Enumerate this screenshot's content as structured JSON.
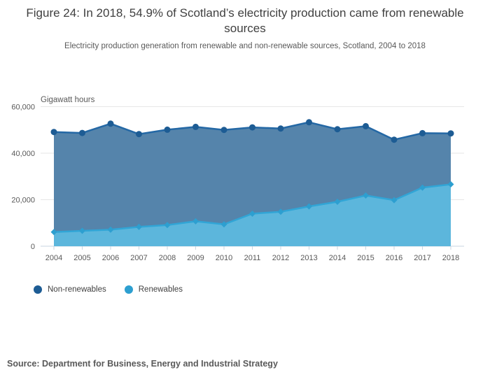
{
  "chart_data": {
    "type": "area",
    "stacked": true,
    "title": "Figure 24: In 2018, 54.9% of Scotland’s electricity production came from renewable sources",
    "subtitle": "Electricity production generation from renewable and non-renewable sources, Scotland, 2004 to 2018",
    "ylabel": "Gigawatt hours",
    "xlabel": "",
    "categories": [
      "2004",
      "2005",
      "2006",
      "2007",
      "2008",
      "2009",
      "2010",
      "2011",
      "2012",
      "2013",
      "2014",
      "2015",
      "2016",
      "2017",
      "2018"
    ],
    "series": [
      {
        "name": "Non-renewables",
        "values": [
          43000,
          42100,
          45600,
          39900,
          41000,
          40600,
          40600,
          37100,
          35800,
          36200,
          31200,
          29800,
          26000,
          23400,
          21900
        ],
        "marker": "circle",
        "line_color": "#2468a5",
        "marker_color": "#1d5c94",
        "fill_color": "#5584ab"
      },
      {
        "name": "Renewables",
        "values": [
          6100,
          6600,
          7100,
          8300,
          9100,
          10700,
          9400,
          14000,
          14800,
          17100,
          19100,
          21800,
          19800,
          25200,
          26600
        ],
        "marker": "diamond",
        "line_color": "#31a5d6",
        "marker_color": "#2d9fd0",
        "fill_color": "#5cb6dc"
      }
    ],
    "stacked_totals": [
      49100,
      48700,
      52700,
      48200,
      50100,
      51300,
      50000,
      51100,
      50600,
      53300,
      50300,
      51600,
      45800,
      48600,
      48500
    ],
    "ylim": [
      0,
      60000
    ],
    "yticks": {
      "values": [
        0,
        20000,
        40000,
        60000
      ],
      "labels": [
        "0",
        "20,000",
        "40,000",
        "60,000"
      ]
    },
    "grid": true,
    "legend_position": "bottom-left",
    "axis_color": "#c9d6e2",
    "grid_color": "#e6e6e6",
    "tick_label_color": "#595959"
  },
  "legend": {
    "items": [
      {
        "label": "Non-renewables"
      },
      {
        "label": "Renewables"
      }
    ]
  },
  "source": {
    "text": "Source: Department for Business, Energy and Industrial Strategy"
  }
}
